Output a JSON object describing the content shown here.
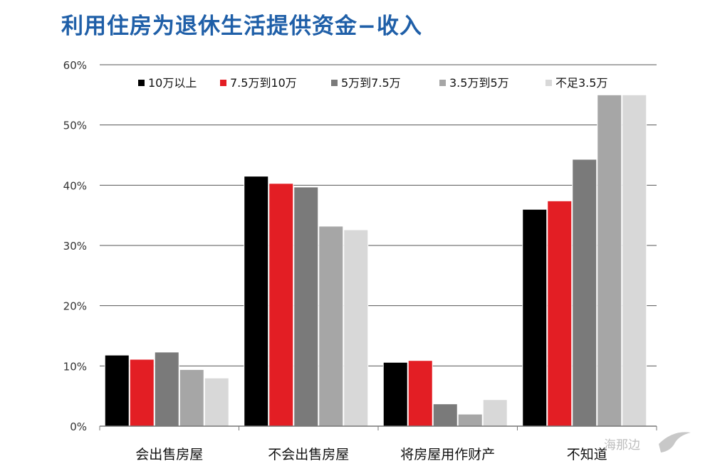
{
  "title": "利用住房为退休生活提供资金−收入",
  "watermark": "海那边",
  "chart_data": {
    "type": "bar",
    "title": "利用住房为退休生活提供资金−收入",
    "xlabel": "",
    "ylabel": "",
    "ylim": [
      0,
      60
    ],
    "yticks": [
      0,
      10,
      20,
      30,
      40,
      50,
      60
    ],
    "ytick_labels": [
      "0%",
      "10%",
      "20%",
      "30%",
      "40%",
      "50%",
      "60%"
    ],
    "grid": true,
    "legend_position": "top",
    "categories": [
      "会出售房屋",
      "不会出售房屋",
      "将房屋用作财产",
      "不知道"
    ],
    "series": [
      {
        "name": "10万以上",
        "color": "#000000",
        "values": [
          11.8,
          41.5,
          10.6,
          36.0
        ]
      },
      {
        "name": "7.5万到10万",
        "color": "#e31e24",
        "values": [
          11.1,
          40.3,
          10.9,
          37.4
        ]
      },
      {
        "name": "5万到7.5万",
        "color": "#7a7a7a",
        "values": [
          12.3,
          39.7,
          3.7,
          44.3
        ]
      },
      {
        "name": "3.5万到5万",
        "color": "#a6a6a6",
        "values": [
          9.4,
          33.2,
          2.0,
          55.0
        ]
      },
      {
        "name": "不足3.5万",
        "color": "#d8d8d8",
        "values": [
          8.0,
          32.6,
          4.4,
          55.0
        ]
      }
    ]
  }
}
